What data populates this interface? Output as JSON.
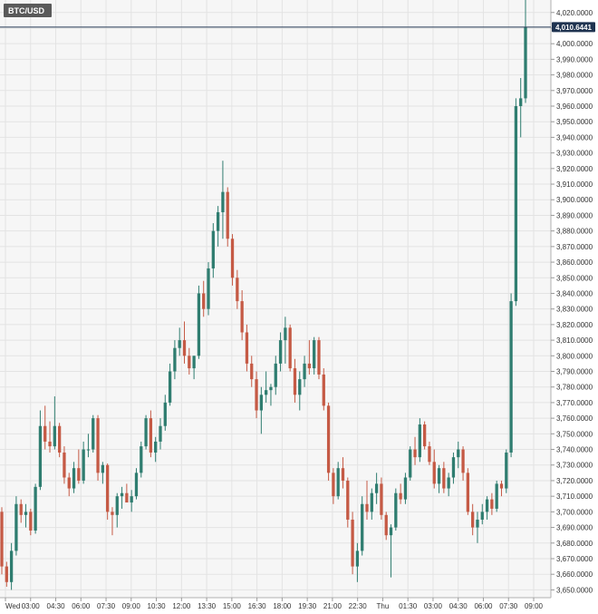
{
  "symbol": "BTC/USD",
  "last_price_label": "4,010.6441",
  "colors": {
    "up": "#2f7d70",
    "down": "#c55a45",
    "grid": "#e3e3e3",
    "background": "#f6f6f6",
    "axis_text": "#333333",
    "symbol_bg": "#5a5a5a",
    "price_line": "#2a3e5a",
    "price_label_bg": "#1f3350"
  },
  "chart_data": {
    "type": "candlestick",
    "title": "",
    "xlabel": "",
    "ylabel": "",
    "ylim": [
      3645,
      4028
    ],
    "grid": true,
    "y_ticks": [
      "3,650.0000",
      "3,660.0000",
      "3,670.0000",
      "3,680.0000",
      "3,690.0000",
      "3,700.0000",
      "3,710.0000",
      "3,720.0000",
      "3,730.0000",
      "3,740.0000",
      "3,750.0000",
      "3,760.0000",
      "3,770.0000",
      "3,780.0000",
      "3,790.0000",
      "3,800.0000",
      "3,810.0000",
      "3,820.0000",
      "3,830.0000",
      "3,840.0000",
      "3,850.0000",
      "3,860.0000",
      "3,870.0000",
      "3,880.0000",
      "3,890.0000",
      "3,900.0000",
      "3,910.0000",
      "3,920.0000",
      "3,930.0000",
      "3,940.0000",
      "3,950.0000",
      "3,960.0000",
      "3,970.0000",
      "3,980.0000",
      "3,990.0000",
      "4,000.0000",
      "4,010.0000",
      "4,020.0000"
    ],
    "x_ticks": [
      "Wed",
      "03:00",
      "04:30",
      "06:00",
      "07:30",
      "09:00",
      "10:30",
      "12:00",
      "13:30",
      "15:00",
      "16:30",
      "18:00",
      "19:30",
      "21:00",
      "22:30",
      "Thu",
      "01:30",
      "03:00",
      "04:30",
      "06:00",
      "07:30",
      "09:00"
    ],
    "candles": [
      {
        "o": 3700,
        "h": 3703,
        "l": 3660,
        "c": 3665
      },
      {
        "o": 3665,
        "h": 3668,
        "l": 3652,
        "c": 3655
      },
      {
        "o": 3655,
        "h": 3680,
        "l": 3650,
        "c": 3675
      },
      {
        "o": 3675,
        "h": 3710,
        "l": 3672,
        "c": 3705
      },
      {
        "o": 3705,
        "h": 3708,
        "l": 3693,
        "c": 3698
      },
      {
        "o": 3698,
        "h": 3705,
        "l": 3690,
        "c": 3700
      },
      {
        "o": 3700,
        "h": 3702,
        "l": 3685,
        "c": 3688
      },
      {
        "o": 3688,
        "h": 3718,
        "l": 3686,
        "c": 3716
      },
      {
        "o": 3716,
        "h": 3765,
        "l": 3714,
        "c": 3755
      },
      {
        "o": 3755,
        "h": 3768,
        "l": 3740,
        "c": 3745
      },
      {
        "o": 3745,
        "h": 3758,
        "l": 3738,
        "c": 3742
      },
      {
        "o": 3742,
        "h": 3774,
        "l": 3740,
        "c": 3755
      },
      {
        "o": 3755,
        "h": 3757,
        "l": 3735,
        "c": 3738
      },
      {
        "o": 3738,
        "h": 3742,
        "l": 3718,
        "c": 3722
      },
      {
        "o": 3722,
        "h": 3725,
        "l": 3710,
        "c": 3715
      },
      {
        "o": 3715,
        "h": 3732,
        "l": 3712,
        "c": 3728
      },
      {
        "o": 3728,
        "h": 3740,
        "l": 3718,
        "c": 3720
      },
      {
        "o": 3720,
        "h": 3745,
        "l": 3718,
        "c": 3740
      },
      {
        "o": 3740,
        "h": 3750,
        "l": 3735,
        "c": 3740
      },
      {
        "o": 3740,
        "h": 3762,
        "l": 3738,
        "c": 3760
      },
      {
        "o": 3760,
        "h": 3762,
        "l": 3720,
        "c": 3725
      },
      {
        "o": 3725,
        "h": 3732,
        "l": 3718,
        "c": 3730
      },
      {
        "o": 3730,
        "h": 3731,
        "l": 3695,
        "c": 3700
      },
      {
        "o": 3700,
        "h": 3703,
        "l": 3685,
        "c": 3698
      },
      {
        "o": 3698,
        "h": 3712,
        "l": 3690,
        "c": 3710
      },
      {
        "o": 3710,
        "h": 3716,
        "l": 3702,
        "c": 3712
      },
      {
        "o": 3712,
        "h": 3718,
        "l": 3708,
        "c": 3706
      },
      {
        "o": 3706,
        "h": 3714,
        "l": 3700,
        "c": 3710
      },
      {
        "o": 3710,
        "h": 3728,
        "l": 3708,
        "c": 3725
      },
      {
        "o": 3725,
        "h": 3745,
        "l": 3722,
        "c": 3742
      },
      {
        "o": 3742,
        "h": 3762,
        "l": 3740,
        "c": 3760
      },
      {
        "o": 3760,
        "h": 3765,
        "l": 3735,
        "c": 3738
      },
      {
        "o": 3738,
        "h": 3748,
        "l": 3732,
        "c": 3745
      },
      {
        "o": 3745,
        "h": 3760,
        "l": 3740,
        "c": 3755
      },
      {
        "o": 3755,
        "h": 3775,
        "l": 3752,
        "c": 3770
      },
      {
        "o": 3770,
        "h": 3795,
        "l": 3768,
        "c": 3790
      },
      {
        "o": 3790,
        "h": 3810,
        "l": 3785,
        "c": 3805
      },
      {
        "o": 3805,
        "h": 3818,
        "l": 3800,
        "c": 3810
      },
      {
        "o": 3810,
        "h": 3822,
        "l": 3795,
        "c": 3800
      },
      {
        "o": 3800,
        "h": 3805,
        "l": 3788,
        "c": 3792
      },
      {
        "o": 3792,
        "h": 3800,
        "l": 3785,
        "c": 3800
      },
      {
        "o": 3800,
        "h": 3845,
        "l": 3798,
        "c": 3840
      },
      {
        "o": 3840,
        "h": 3848,
        "l": 3825,
        "c": 3830
      },
      {
        "o": 3830,
        "h": 3860,
        "l": 3826,
        "c": 3856
      },
      {
        "o": 3856,
        "h": 3885,
        "l": 3850,
        "c": 3880
      },
      {
        "o": 3880,
        "h": 3896,
        "l": 3870,
        "c": 3892
      },
      {
        "o": 3892,
        "h": 3925,
        "l": 3875,
        "c": 3905
      },
      {
        "o": 3905,
        "h": 3908,
        "l": 3870,
        "c": 3875
      },
      {
        "o": 3875,
        "h": 3878,
        "l": 3845,
        "c": 3850
      },
      {
        "o": 3850,
        "h": 3855,
        "l": 3830,
        "c": 3835
      },
      {
        "o": 3835,
        "h": 3842,
        "l": 3810,
        "c": 3815
      },
      {
        "o": 3815,
        "h": 3820,
        "l": 3790,
        "c": 3795
      },
      {
        "o": 3795,
        "h": 3800,
        "l": 3780,
        "c": 3785
      },
      {
        "o": 3785,
        "h": 3790,
        "l": 3760,
        "c": 3765
      },
      {
        "o": 3765,
        "h": 3780,
        "l": 3750,
        "c": 3775
      },
      {
        "o": 3775,
        "h": 3790,
        "l": 3770,
        "c": 3778
      },
      {
        "o": 3778,
        "h": 3782,
        "l": 3768,
        "c": 3780
      },
      {
        "o": 3780,
        "h": 3800,
        "l": 3775,
        "c": 3795
      },
      {
        "o": 3795,
        "h": 3815,
        "l": 3790,
        "c": 3810
      },
      {
        "o": 3810,
        "h": 3825,
        "l": 3795,
        "c": 3818
      },
      {
        "o": 3818,
        "h": 3820,
        "l": 3790,
        "c": 3792
      },
      {
        "o": 3792,
        "h": 3798,
        "l": 3770,
        "c": 3775
      },
      {
        "o": 3775,
        "h": 3790,
        "l": 3765,
        "c": 3785
      },
      {
        "o": 3785,
        "h": 3800,
        "l": 3780,
        "c": 3795
      },
      {
        "o": 3795,
        "h": 3810,
        "l": 3788,
        "c": 3792
      },
      {
        "o": 3792,
        "h": 3812,
        "l": 3788,
        "c": 3810
      },
      {
        "o": 3810,
        "h": 3812,
        "l": 3785,
        "c": 3788
      },
      {
        "o": 3788,
        "h": 3792,
        "l": 3765,
        "c": 3768
      },
      {
        "o": 3768,
        "h": 3770,
        "l": 3720,
        "c": 3725
      },
      {
        "o": 3725,
        "h": 3728,
        "l": 3705,
        "c": 3710
      },
      {
        "o": 3710,
        "h": 3732,
        "l": 3708,
        "c": 3728
      },
      {
        "o": 3728,
        "h": 3735,
        "l": 3715,
        "c": 3720
      },
      {
        "o": 3720,
        "h": 3722,
        "l": 3690,
        "c": 3695
      },
      {
        "o": 3695,
        "h": 3700,
        "l": 3660,
        "c": 3665
      },
      {
        "o": 3665,
        "h": 3680,
        "l": 3655,
        "c": 3675
      },
      {
        "o": 3675,
        "h": 3710,
        "l": 3672,
        "c": 3705
      },
      {
        "o": 3705,
        "h": 3720,
        "l": 3695,
        "c": 3700
      },
      {
        "o": 3700,
        "h": 3715,
        "l": 3695,
        "c": 3712
      },
      {
        "o": 3712,
        "h": 3725,
        "l": 3705,
        "c": 3718
      },
      {
        "o": 3718,
        "h": 3722,
        "l": 3695,
        "c": 3698
      },
      {
        "o": 3698,
        "h": 3700,
        "l": 3682,
        "c": 3685
      },
      {
        "o": 3685,
        "h": 3692,
        "l": 3658,
        "c": 3690
      },
      {
        "o": 3690,
        "h": 3715,
        "l": 3688,
        "c": 3712
      },
      {
        "o": 3712,
        "h": 3718,
        "l": 3705,
        "c": 3708
      },
      {
        "o": 3708,
        "h": 3725,
        "l": 3705,
        "c": 3722
      },
      {
        "o": 3722,
        "h": 3742,
        "l": 3720,
        "c": 3740
      },
      {
        "o": 3740,
        "h": 3748,
        "l": 3730,
        "c": 3735
      },
      {
        "o": 3735,
        "h": 3760,
        "l": 3732,
        "c": 3756
      },
      {
        "o": 3756,
        "h": 3758,
        "l": 3740,
        "c": 3742
      },
      {
        "o": 3742,
        "h": 3745,
        "l": 3730,
        "c": 3732
      },
      {
        "o": 3732,
        "h": 3740,
        "l": 3715,
        "c": 3718
      },
      {
        "o": 3718,
        "h": 3730,
        "l": 3712,
        "c": 3728
      },
      {
        "o": 3728,
        "h": 3732,
        "l": 3712,
        "c": 3715
      },
      {
        "o": 3715,
        "h": 3725,
        "l": 3710,
        "c": 3722
      },
      {
        "o": 3722,
        "h": 3738,
        "l": 3718,
        "c": 3735
      },
      {
        "o": 3735,
        "h": 3745,
        "l": 3728,
        "c": 3740
      },
      {
        "o": 3740,
        "h": 3742,
        "l": 3720,
        "c": 3725
      },
      {
        "o": 3725,
        "h": 3728,
        "l": 3698,
        "c": 3700
      },
      {
        "o": 3700,
        "h": 3705,
        "l": 3685,
        "c": 3690
      },
      {
        "o": 3690,
        "h": 3700,
        "l": 3680,
        "c": 3695
      },
      {
        "o": 3695,
        "h": 3705,
        "l": 3692,
        "c": 3700
      },
      {
        "o": 3700,
        "h": 3710,
        "l": 3695,
        "c": 3708
      },
      {
        "o": 3708,
        "h": 3712,
        "l": 3698,
        "c": 3702
      },
      {
        "o": 3702,
        "h": 3720,
        "l": 3700,
        "c": 3718
      },
      {
        "o": 3718,
        "h": 3720,
        "l": 3710,
        "c": 3715
      },
      {
        "o": 3715,
        "h": 3740,
        "l": 3712,
        "c": 3738
      },
      {
        "o": 3738,
        "h": 3840,
        "l": 3735,
        "c": 3835
      },
      {
        "o": 3835,
        "h": 3965,
        "l": 3832,
        "c": 3960
      },
      {
        "o": 3960,
        "h": 3978,
        "l": 3940,
        "c": 3965
      },
      {
        "o": 3965,
        "h": 4028,
        "l": 3962,
        "c": 4010.64
      }
    ]
  }
}
